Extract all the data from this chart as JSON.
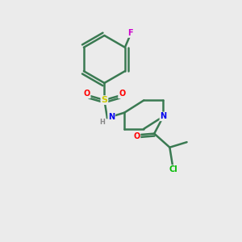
{
  "background_color": "#ebebeb",
  "bond_color": "#3a7a52",
  "atom_colors": {
    "F": "#cc00cc",
    "S": "#cccc00",
    "O": "#ff0000",
    "N": "#0000ee",
    "Cl": "#00bb00",
    "H": "#888888",
    "C": "#3a7a52"
  },
  "bond_width": 1.8,
  "figsize": [
    3.0,
    3.0
  ],
  "dpi": 100,
  "xlim": [
    0,
    10
  ],
  "ylim": [
    0,
    10
  ]
}
